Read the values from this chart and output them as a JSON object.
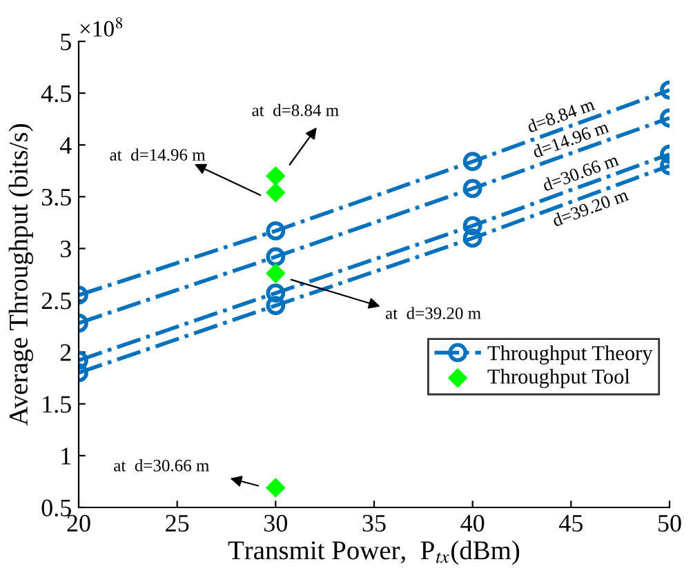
{
  "chart_data": {
    "type": "line",
    "xlabel": "Transmit Power,  P$_{tx}$(dBm)",
    "ylabel": "Average Throughput (bits/s)",
    "xlim": [
      20,
      50
    ],
    "xticks": [
      20,
      25,
      30,
      35,
      40,
      45,
      50
    ],
    "ylim": [
      0.5,
      5
    ],
    "yticks": [
      0.5,
      1,
      1.5,
      2,
      2.5,
      3,
      3.5,
      4,
      4.5,
      5
    ],
    "grid": false,
    "legend": "bottom right",
    "line_style": "dashed",
    "series": [
      {
        "name": "Throughput Theory",
        "marker": "circle",
        "color": "#0072bd",
        "x": [
          20,
          30,
          40,
          50
        ],
        "values": [
          2.55,
          3.17,
          3.84,
          4.53
        ]
      },
      {
        "marker": "circle",
        "color": "#0072bd",
        "x": [
          20,
          30,
          40,
          50
        ],
        "values": [
          2.28,
          2.92,
          3.58,
          4.26
        ]
      },
      {
        "marker": "circle",
        "color": "#0072bd",
        "x": [
          20,
          30,
          40,
          50
        ],
        "values": [
          1.92,
          2.57,
          3.22,
          3.91
        ]
      },
      {
        "marker": "circle",
        "color": "#0072bd",
        "x": [
          20,
          30,
          40,
          50
        ],
        "values": [
          1.8,
          2.45,
          3.1,
          3.8
        ]
      },
      {
        "name": "Throughput Tool",
        "type": "scatter",
        "marker": "diamond",
        "color": "#00ff00",
        "x": [
          30,
          30,
          30,
          30
        ],
        "values": [
          3.7,
          3.54,
          2.76,
          0.69
        ]
      }
    ],
    "annotations": [
      "×10$^{8}$",
      "at  d=8.84 m",
      "at  d=14.96 m",
      "at  d=39.20 m",
      "at  d=30.66 m",
      "d=8.84 m",
      "d=14.96 m",
      "d=30.66 m",
      "d=39.20 m"
    ]
  }
}
